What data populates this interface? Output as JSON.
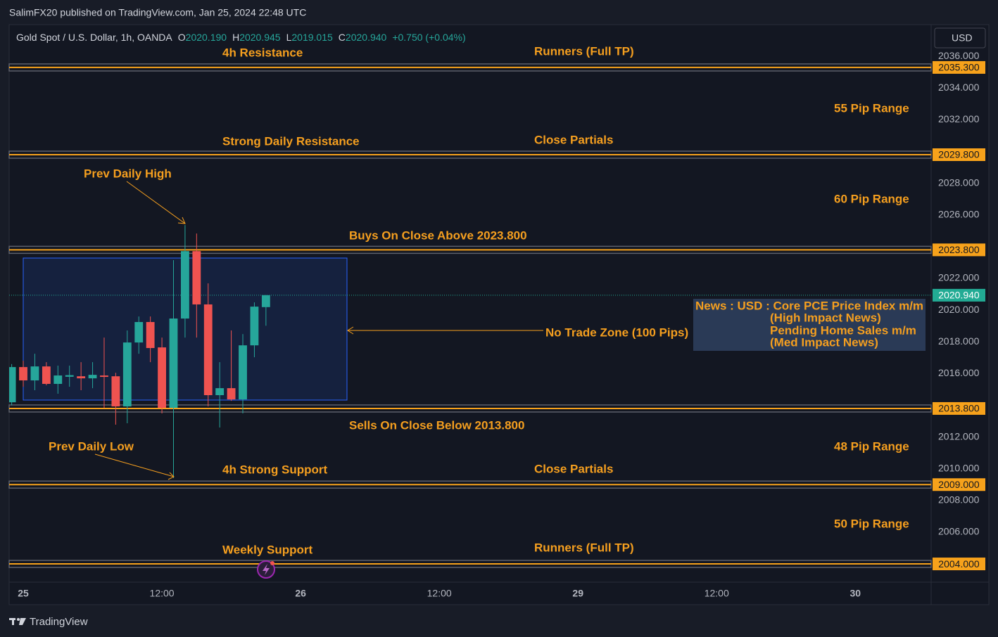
{
  "header": {
    "published": "SalimFX20 published on TradingView.com, Jan 25, 2024 22:48 UTC",
    "currency": "USD",
    "logo": "TradingView"
  },
  "chart_data": {
    "type": "candlestick",
    "title": "Gold Spot / U.S. Dollar, 1h, OANDA",
    "ohlc": [
      {
        "key": "O",
        "text": "2020.190"
      },
      {
        "key": "H",
        "text": "2020.945"
      },
      {
        "key": "L",
        "text": "2019.015"
      },
      {
        "key": "C",
        "text": "2020.940"
      }
    ],
    "change": "+0.750 (+0.04%)",
    "x": [
      -1,
      0,
      1,
      2,
      3,
      4,
      5,
      6,
      7,
      8,
      9,
      10,
      11,
      12,
      13,
      14,
      15,
      16,
      17,
      18,
      19,
      20,
      21
    ],
    "open": [
      2014.19,
      2016.41,
      2015.57,
      2016.45,
      2015.35,
      2015.8,
      2015.83,
      2015.7,
      2015.88,
      2015.83,
      2013.93,
      2017.96,
      2019.25,
      2017.65,
      2013.84,
      2019.47,
      2023.72,
      2020.36,
      2014.64,
      2015.08,
      2014.37,
      2017.78,
      2020.19
    ],
    "high": [
      2016.6,
      2016.81,
      2017.25,
      2016.72,
      2016.5,
      2016.5,
      2016.72,
      2016.72,
      2018.27,
      2016.05,
      2018.72,
      2019.6,
      2019.6,
      2018.27,
      2023.15,
      2025.36,
      2024.83,
      2021.69,
      2016.72,
      2018.72,
      2018.49,
      2020.49,
      2020.945
    ],
    "low": [
      2014.0,
      2015.17,
      2014.95,
      2015.26,
      2014.73,
      2015.17,
      2014.95,
      2015.08,
      2013.84,
      2012.78,
      2012.87,
      2017.25,
      2016.72,
      2013.49,
      2009.41,
      2018.27,
      2018.27,
      2013.93,
      2012.6,
      2014.28,
      2013.49,
      2017.03,
      2019.015
    ],
    "close": [
      2016.41,
      2015.57,
      2016.45,
      2015.35,
      2015.88,
      2015.9,
      2015.7,
      2015.92,
      2015.79,
      2013.93,
      2017.96,
      2019.25,
      2017.61,
      2013.84,
      2019.47,
      2023.72,
      2020.36,
      2014.64,
      2015.08,
      2014.37,
      2017.78,
      2020.22,
      2020.94
    ],
    "up_color": "#26a69a",
    "down_color": "#ef5350",
    "xlim": [
      -1.22,
      78.56
    ],
    "xticks": [
      {
        "value": 0,
        "label": "25"
      },
      {
        "value": 12,
        "label": "12:00"
      },
      {
        "value": 24,
        "label": "26"
      },
      {
        "value": 36,
        "label": "12:00"
      },
      {
        "value": 48,
        "label": "29"
      },
      {
        "value": 60,
        "label": "12:00"
      },
      {
        "value": 72,
        "label": "30"
      }
    ],
    "ylim": [
      2002.85,
      2038.0
    ],
    "yticks": [
      {
        "value": 2036,
        "label": "2036.000"
      },
      {
        "value": 2034,
        "label": "2034.000"
      },
      {
        "value": 2032,
        "label": "2032.000"
      },
      {
        "value": 2028,
        "label": "2028.000"
      },
      {
        "value": 2026,
        "label": "2026.000"
      },
      {
        "value": 2022,
        "label": "2022.000"
      },
      {
        "value": 2020,
        "label": "2020.000"
      },
      {
        "value": 2018,
        "label": "2018.000"
      },
      {
        "value": 2016,
        "label": "2016.000"
      },
      {
        "value": 2012,
        "label": "2012.000"
      },
      {
        "value": 2010,
        "label": "2010.000"
      },
      {
        "value": 2008,
        "label": "2008.000"
      },
      {
        "value": 2006,
        "label": "2006.000"
      }
    ],
    "grid": false,
    "levels": [
      {
        "value": 2035.3,
        "label": "2035.300"
      },
      {
        "value": 2029.8,
        "label": "2029.800"
      },
      {
        "value": 2023.8,
        "label": "2023.800"
      },
      {
        "value": 2013.8,
        "label": "2013.800"
      },
      {
        "value": 2009.0,
        "label": "2009.000"
      },
      {
        "value": 2004.0,
        "label": "2004.000"
      }
    ],
    "level_color": "#f7a21b",
    "last_price": {
      "value": 2020.94,
      "label": "2020.940"
    },
    "last_price_color": "#22ab94",
    "annotations": [
      "4h Resistance",
      "Runners (Full TP)",
      "55 Pip Range",
      "Strong Daily Resistance",
      "Close Partials",
      "Prev Daily High",
      "60 Pip Range",
      "Buys On Close Above 2023.800",
      "No Trade Zone (100 Pips)",
      "Sells On Close Below 2013.800",
      "Prev Daily Low",
      "48 Pip Range",
      "4h Strong Support",
      "Close Partials",
      "50 Pip Range",
      "Weekly Support",
      "Runners (Full TP)"
    ],
    "news": [
      "News : USD : Core PCE Price Index m/m",
      "(High Impact News)",
      "Pending Home Sales m/m",
      "(Med Impact News)"
    ]
  }
}
